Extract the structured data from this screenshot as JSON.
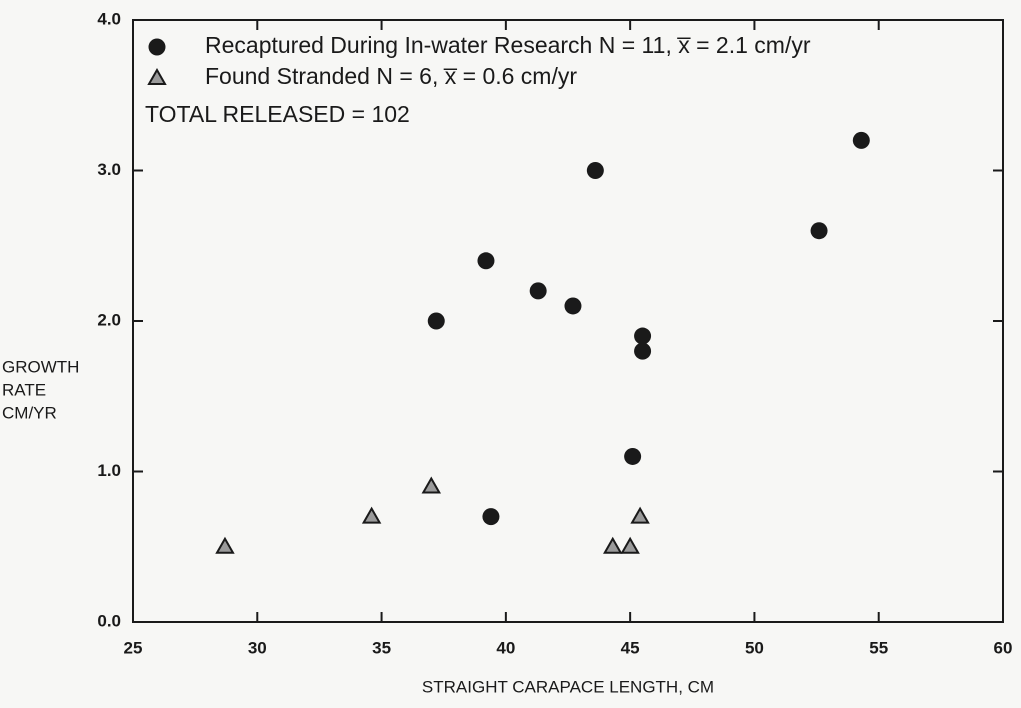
{
  "chart_data": {
    "type": "scatter",
    "xlabel": "STRAIGHT CARAPACE LENGTH, CM",
    "ylabel_lines": [
      "GROWTH",
      "RATE",
      "CM/YR"
    ],
    "annotation": "TOTAL RELEASED = 102",
    "xlim": [
      25,
      60
    ],
    "xticks": [
      25,
      30,
      35,
      40,
      45,
      50,
      55,
      60
    ],
    "ylim": [
      0,
      4
    ],
    "yticks": [
      {
        "value": 0,
        "label": "0.0"
      },
      {
        "value": 1,
        "label": "1.0"
      },
      {
        "value": 2,
        "label": "2.0"
      },
      {
        "value": 3,
        "label": "3.0"
      },
      {
        "value": 4,
        "label": "4.0"
      }
    ],
    "series": [
      {
        "name": "Recaptured During In-water Research N = 11, x̅ = 2.1 cm/yr",
        "marker": "circle",
        "color": "#1a1a1a",
        "x": [
          37.2,
          39.2,
          39.4,
          41.3,
          42.7,
          43.6,
          45.1,
          45.5,
          45.5,
          52.6,
          54.3
        ],
        "values": [
          2.0,
          2.4,
          0.7,
          2.2,
          2.1,
          3.0,
          1.1,
          1.9,
          1.8,
          2.6,
          3.2
        ]
      },
      {
        "name": "Found Stranded N = 6, x̅ = 0.6 cm/yr",
        "marker": "triangle",
        "color": "#9a9a9a",
        "x": [
          28.7,
          34.6,
          37.0,
          44.3,
          45.0,
          45.4
        ],
        "values": [
          0.5,
          0.7,
          0.9,
          0.5,
          0.5,
          0.7
        ]
      }
    ]
  }
}
